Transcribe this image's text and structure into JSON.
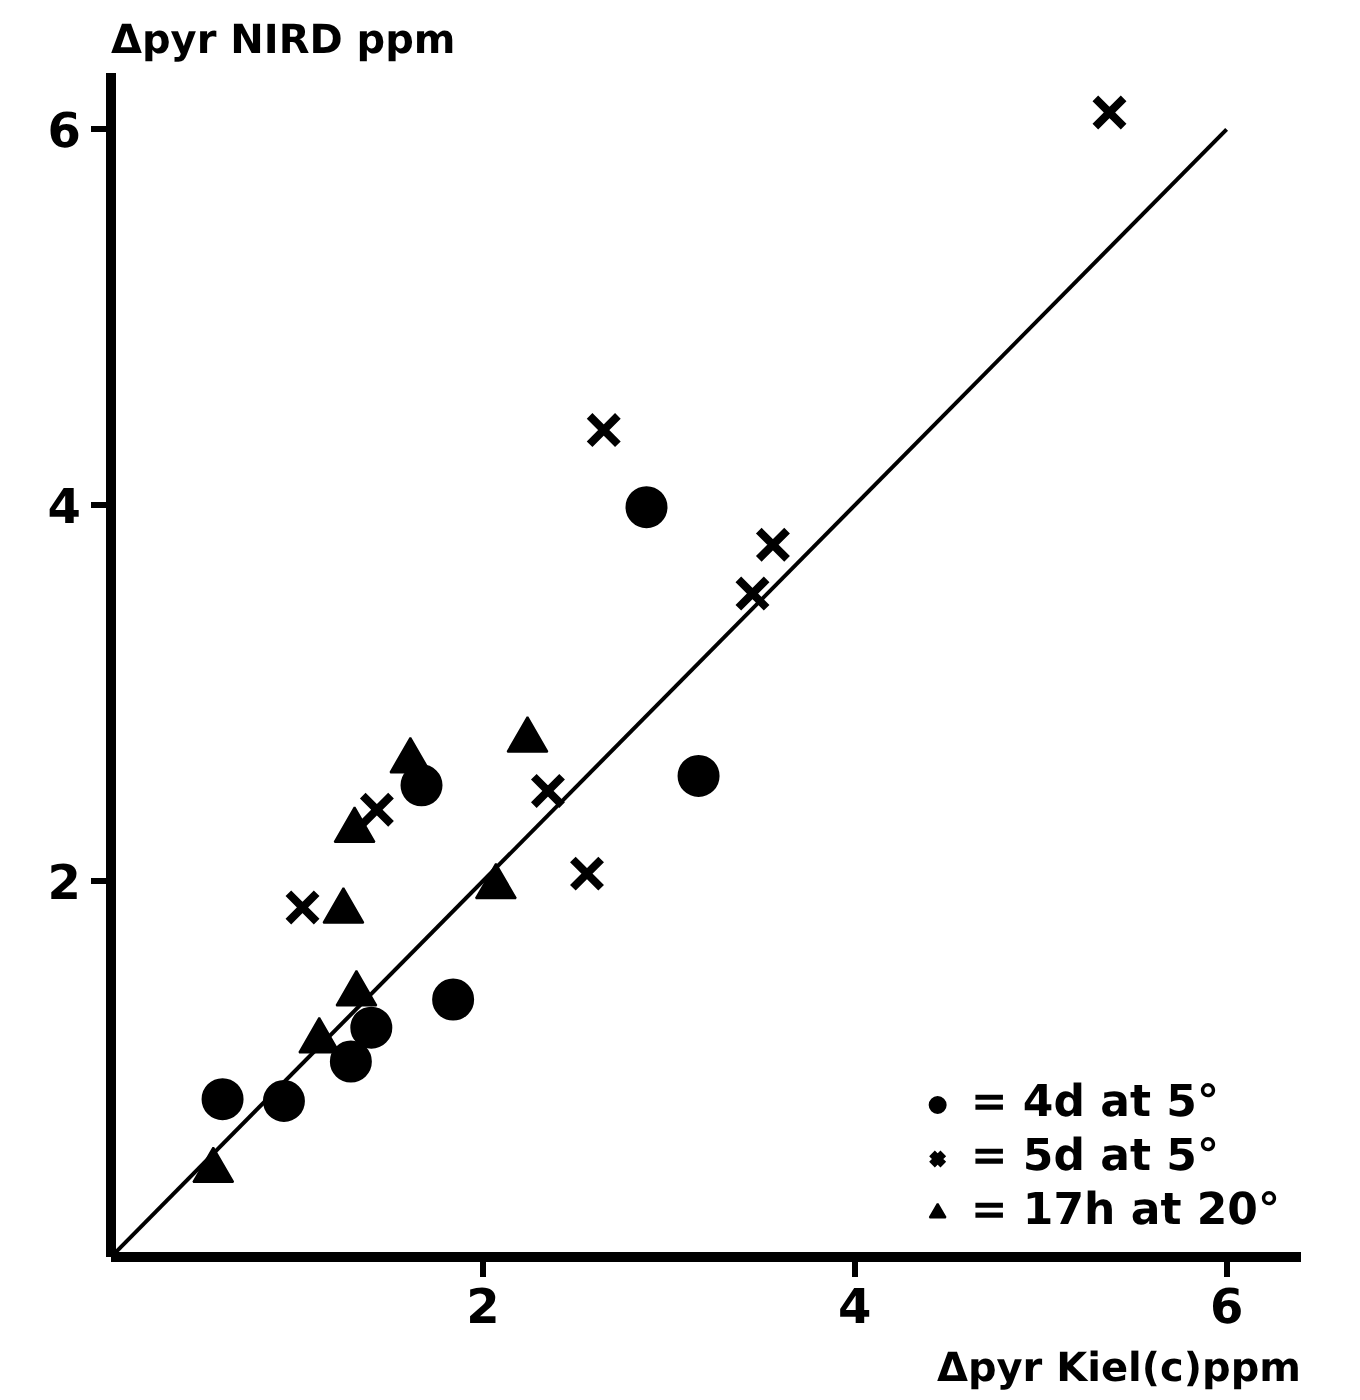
{
  "chart_data": {
    "type": "scatter",
    "xlabel": "Δpyr Kiel(c)ppm",
    "ylabel": "Δpyr NIRD ppm",
    "xlim": [
      0,
      6.4
    ],
    "ylim": [
      0,
      6.3
    ],
    "xticks": [
      2,
      4,
      6
    ],
    "yticks": [
      2,
      4,
      6
    ],
    "grid": false,
    "legend": "bottom right",
    "series": [
      {
        "name": "= 4d at 5°",
        "color": "#000000",
        "marker": "circle",
        "x": [
          0.6,
          0.93,
          1.29,
          1.4,
          1.84,
          1.67,
          2.88,
          3.16
        ],
        "values": [
          0.84,
          0.83,
          1.04,
          1.22,
          1.37,
          2.51,
          3.99,
          2.56
        ]
      },
      {
        "name": "= 5d at 5°",
        "color": "#000000",
        "marker": "cross",
        "x": [
          2.65,
          1.43,
          1.03,
          2.35,
          2.56,
          3.45,
          3.56,
          5.37
        ],
        "values": [
          4.4,
          2.38,
          1.86,
          2.48,
          2.04,
          3.53,
          3.79,
          6.09
        ]
      },
      {
        "name": "= 17h at 20°",
        "color": "#000000",
        "marker": "triangle",
        "x": [
          0.55,
          1.12,
          1.32,
          1.25,
          2.07,
          1.31,
          1.61,
          2.24
        ],
        "values": [
          0.46,
          1.15,
          1.4,
          1.84,
          1.97,
          2.27,
          2.64,
          2.75
        ]
      },
      {
        "type": "line",
        "color": "#000000",
        "x": [
          0,
          6
        ],
        "values": [
          0,
          6
        ]
      }
    ]
  }
}
